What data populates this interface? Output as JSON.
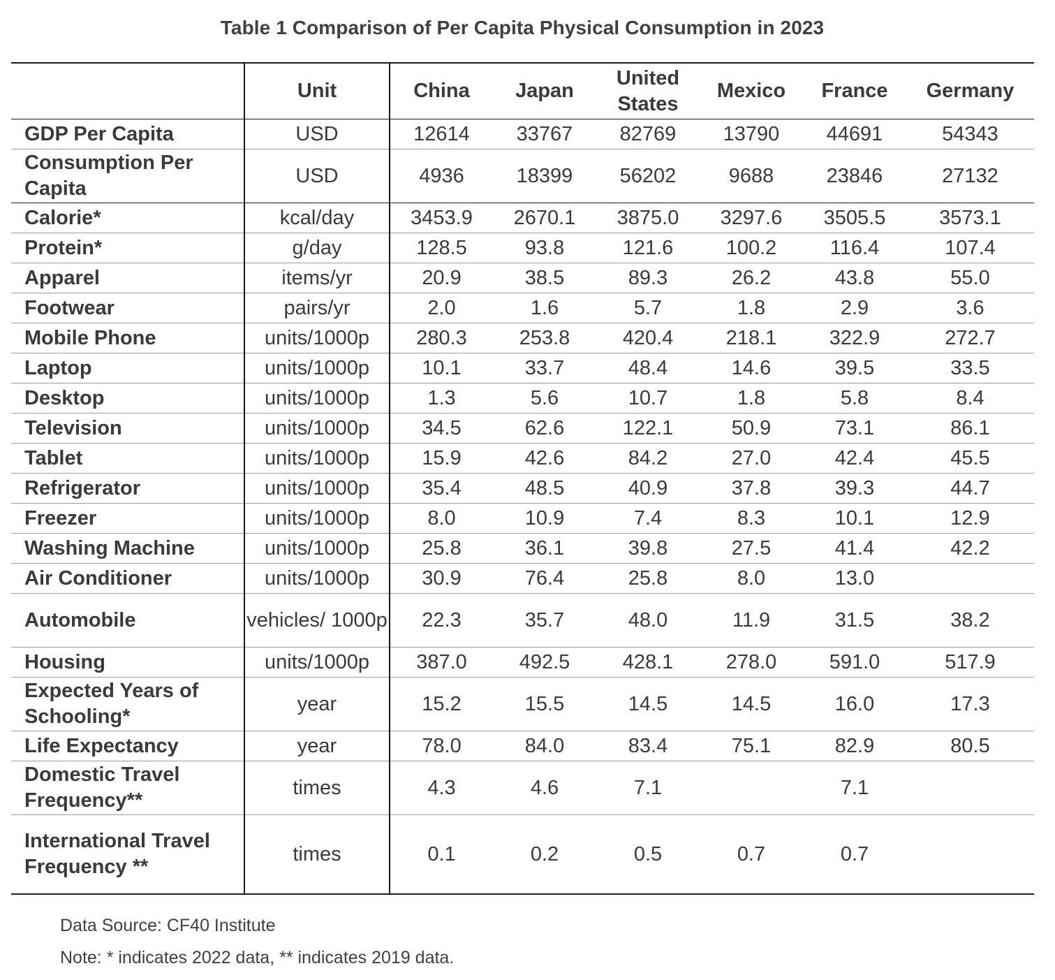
{
  "title": "Table 1 Comparison of Per Capita Physical Consumption in 2023",
  "header": {
    "label": "",
    "unit": "Unit",
    "countries": [
      "China",
      "Japan",
      "United States",
      "Mexico",
      "France",
      "Germany"
    ]
  },
  "rows": [
    {
      "label": "GDP Per Capita",
      "unit": "USD",
      "values": [
        "12614",
        "33767",
        "82769",
        "13790",
        "44691",
        "54343"
      ]
    },
    {
      "label": "Consumption Per Capita",
      "unit": "USD",
      "values": [
        "4936",
        "18399",
        "56202",
        "9688",
        "23846",
        "27132"
      ]
    },
    {
      "label": "Calorie*",
      "unit": "kcal/day",
      "values": [
        "3453.9",
        "2670.1",
        "3875.0",
        "3297.6",
        "3505.5",
        "3573.1"
      ]
    },
    {
      "label": "Protein*",
      "unit": "g/day",
      "values": [
        "128.5",
        "93.8",
        "121.6",
        "100.2",
        "116.4",
        "107.4"
      ]
    },
    {
      "label": "Apparel",
      "unit": "items/yr",
      "values": [
        "20.9",
        "38.5",
        "89.3",
        "26.2",
        "43.8",
        "55.0"
      ]
    },
    {
      "label": "Footwear",
      "unit": "pairs/yr",
      "values": [
        "2.0",
        "1.6",
        "5.7",
        "1.8",
        "2.9",
        "3.6"
      ]
    },
    {
      "label": "Mobile Phone",
      "unit": "units/1000p",
      "values": [
        "280.3",
        "253.8",
        "420.4",
        "218.1",
        "322.9",
        "272.7"
      ]
    },
    {
      "label": "Laptop",
      "unit": "units/1000p",
      "values": [
        "10.1",
        "33.7",
        "48.4",
        "14.6",
        "39.5",
        "33.5"
      ]
    },
    {
      "label": "Desktop",
      "unit": "units/1000p",
      "values": [
        "1.3",
        "5.6",
        "10.7",
        "1.8",
        "5.8",
        "8.4"
      ]
    },
    {
      "label": "Television",
      "unit": "units/1000p",
      "values": [
        "34.5",
        "62.6",
        "122.1",
        "50.9",
        "73.1",
        "86.1"
      ]
    },
    {
      "label": "Tablet",
      "unit": "units/1000p",
      "values": [
        "15.9",
        "42.6",
        "84.2",
        "27.0",
        "42.4",
        "45.5"
      ]
    },
    {
      "label": "Refrigerator",
      "unit": "units/1000p",
      "values": [
        "35.4",
        "48.5",
        "40.9",
        "37.8",
        "39.3",
        "44.7"
      ]
    },
    {
      "label": "Freezer",
      "unit": "units/1000p",
      "values": [
        "8.0",
        "10.9",
        "7.4",
        "8.3",
        "10.1",
        "12.9"
      ]
    },
    {
      "label": "Washing Machine",
      "unit": "units/1000p",
      "values": [
        "25.8",
        "36.1",
        "39.8",
        "27.5",
        "41.4",
        "42.2"
      ]
    },
    {
      "label": "Air Conditioner",
      "unit": "units/1000p",
      "values": [
        "30.9",
        "76.4",
        "25.8",
        "8.0",
        "13.0",
        ""
      ]
    },
    {
      "label": "Automobile",
      "unit": "vehicles/ 1000p",
      "values": [
        "22.3",
        "35.7",
        "48.0",
        "11.9",
        "31.5",
        "38.2"
      ]
    },
    {
      "label": "Housing",
      "unit": "units/1000p",
      "values": [
        "387.0",
        "492.5",
        "428.1",
        "278.0",
        "591.0",
        "517.9"
      ]
    },
    {
      "label": "Expected Years of Schooling*",
      "unit": "year",
      "values": [
        "15.2",
        "15.5",
        "14.5",
        "14.5",
        "16.0",
        "17.3"
      ]
    },
    {
      "label": "Life Expectancy",
      "unit": "year",
      "values": [
        "78.0",
        "84.0",
        "83.4",
        "75.1",
        "82.9",
        "80.5"
      ]
    },
    {
      "label": "Domestic Travel Frequency**",
      "unit": "times",
      "values": [
        "4.3",
        "4.6",
        "7.1",
        "",
        "7.1",
        ""
      ]
    },
    {
      "label": "International Travel Frequency **",
      "unit": "times",
      "values": [
        "0.1",
        "0.2",
        "0.5",
        "0.7",
        "0.7",
        ""
      ]
    }
  ],
  "source": "Data Source: CF40 Institute",
  "note": "Note: * indicates 2022 data, ** indicates 2019 data."
}
